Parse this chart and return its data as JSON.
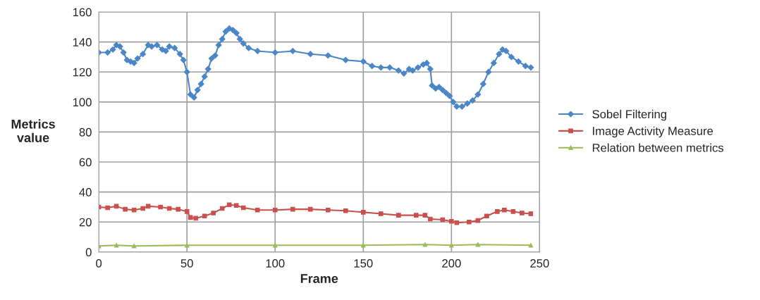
{
  "chart_data": {
    "type": "line",
    "xlabel": "Frame",
    "ylabel": "Metrics\nvalue",
    "xlim": [
      0,
      250
    ],
    "ylim": [
      0,
      160
    ],
    "xticks": [
      0,
      50,
      100,
      150,
      200,
      250
    ],
    "yticks": [
      0,
      20,
      40,
      60,
      80,
      100,
      120,
      140,
      160
    ],
    "grid": true,
    "legend": "right",
    "series": [
      {
        "name": "Sobel Filtering",
        "color": "#4a86c8",
        "marker": "diamond",
        "x": [
          0,
          5,
          8,
          10,
          12,
          14,
          16,
          18,
          20,
          22,
          25,
          28,
          30,
          33,
          36,
          38,
          40,
          43,
          46,
          48,
          50,
          52,
          54,
          56,
          58,
          60,
          62,
          64,
          66,
          68,
          70,
          72,
          74,
          76,
          78,
          80,
          82,
          85,
          90,
          100,
          110,
          120,
          130,
          140,
          150,
          155,
          160,
          165,
          170,
          173,
          176,
          178,
          181,
          184,
          186,
          188,
          189,
          191,
          193,
          195,
          197,
          199,
          201,
          203,
          206,
          209,
          212,
          215,
          218,
          221,
          224,
          227,
          229,
          231,
          234,
          238,
          242,
          245
        ],
        "values": [
          133,
          133,
          135,
          138,
          137,
          133,
          128,
          127,
          126,
          129,
          132,
          138,
          137,
          138,
          135,
          134,
          137,
          136,
          132,
          128,
          120,
          105,
          103,
          108,
          112,
          117,
          122,
          129,
          131,
          138,
          142,
          147,
          149,
          148,
          146,
          142,
          139,
          136,
          134,
          133,
          134,
          132,
          131,
          128,
          127,
          124,
          123,
          123,
          121,
          119,
          122,
          121,
          123,
          125,
          126,
          122,
          111,
          109,
          110,
          108,
          106,
          104,
          100,
          97,
          97,
          99,
          101,
          105,
          112,
          120,
          126,
          132,
          135,
          134,
          130,
          127,
          124,
          123
        ]
      },
      {
        "name": "Image Activity Measure",
        "color": "#c9504d",
        "marker": "square",
        "x": [
          0,
          5,
          10,
          15,
          20,
          25,
          28,
          35,
          40,
          45,
          50,
          52,
          55,
          60,
          65,
          70,
          74,
          78,
          82,
          90,
          100,
          110,
          120,
          130,
          140,
          150,
          160,
          170,
          180,
          185,
          188,
          195,
          200,
          203,
          210,
          215,
          220,
          226,
          230,
          235,
          240,
          245
        ],
        "values": [
          30,
          29.5,
          30.5,
          28.5,
          28,
          29,
          30.5,
          30,
          29,
          28.5,
          27,
          23,
          22.5,
          24,
          26,
          29,
          31.5,
          31,
          29.5,
          28,
          28,
          28.5,
          28.5,
          28,
          27.5,
          26.5,
          25.5,
          24.5,
          24.5,
          24.5,
          22,
          21.5,
          20.5,
          19.5,
          20,
          21,
          24,
          27,
          28,
          27,
          26,
          25.5
        ]
      },
      {
        "name": "Relation between metrics",
        "color": "#9bbb59",
        "marker": "triangle",
        "x": [
          0,
          10,
          20,
          50,
          100,
          150,
          185,
          200,
          215,
          245
        ],
        "values": [
          4,
          4.5,
          4,
          4.5,
          4.5,
          4.5,
          5,
          4.5,
          5,
          4.5
        ]
      }
    ]
  }
}
